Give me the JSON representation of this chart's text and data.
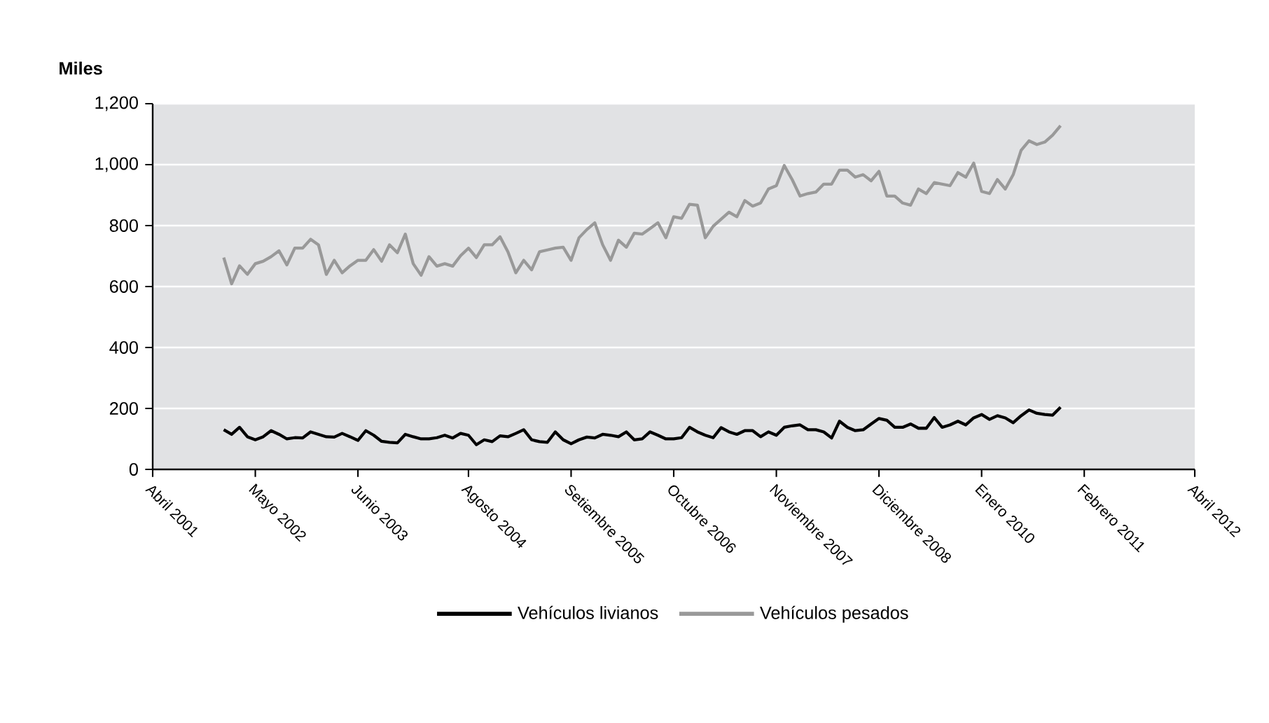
{
  "chart_data": {
    "type": "line",
    "ylabel": "Miles",
    "x": [
      "2002-01",
      "2002-02",
      "2002-03",
      "2002-04",
      "2002-05",
      "2002-06",
      "2002-07",
      "2002-08",
      "2002-09",
      "2002-10",
      "2002-11",
      "2002-12",
      "2003-01",
      "2003-02",
      "2003-03",
      "2003-04",
      "2003-05",
      "2003-06",
      "2003-07",
      "2003-08",
      "2003-09",
      "2003-10",
      "2003-11",
      "2003-12",
      "2004-01",
      "2004-02",
      "2004-03",
      "2004-04",
      "2004-05",
      "2004-06",
      "2004-07",
      "2004-08",
      "2004-09",
      "2004-10",
      "2004-11",
      "2004-12",
      "2005-01",
      "2005-02",
      "2005-03",
      "2005-04",
      "2005-05",
      "2005-06",
      "2005-07",
      "2005-08",
      "2005-09",
      "2005-10",
      "2005-11",
      "2005-12",
      "2006-01",
      "2006-02",
      "2006-03",
      "2006-04",
      "2006-05",
      "2006-06",
      "2006-07",
      "2006-08",
      "2006-09",
      "2006-10",
      "2006-11",
      "2006-12",
      "2007-01",
      "2007-02",
      "2007-03",
      "2007-04",
      "2007-05",
      "2007-06",
      "2007-07",
      "2007-08",
      "2007-09",
      "2007-10",
      "2007-11",
      "2007-12",
      "2008-01",
      "2008-02",
      "2008-03",
      "2008-04",
      "2008-05",
      "2008-06",
      "2008-07",
      "2008-08",
      "2008-09",
      "2008-10",
      "2008-11",
      "2008-12",
      "2009-01",
      "2009-02",
      "2009-03",
      "2009-04",
      "2009-05",
      "2009-06",
      "2009-07",
      "2009-08",
      "2009-09",
      "2009-10",
      "2009-11",
      "2009-12",
      "2010-01",
      "2010-02",
      "2010-03",
      "2010-04",
      "2010-05",
      "2010-06",
      "2010-07",
      "2010-08",
      "2010-09",
      "2010-10",
      "2010-11"
    ],
    "series": [
      {
        "name": "Vehículos livianos",
        "color": "#000000",
        "values": [
          130,
          115,
          138,
          107,
          97,
          107,
          127,
          115,
          100,
          104,
          103,
          123,
          115,
          107,
          106,
          118,
          107,
          95,
          127,
          112,
          92,
          89,
          87,
          115,
          107,
          100,
          100,
          104,
          112,
          103,
          118,
          112,
          81,
          97,
          91,
          110,
          107,
          118,
          130,
          97,
          91,
          89,
          123,
          97,
          84,
          97,
          106,
          103,
          115,
          112,
          107,
          123,
          97,
          100,
          123,
          112,
          100,
          100,
          104,
          138,
          123,
          112,
          104,
          137,
          123,
          115,
          127,
          127,
          107,
          123,
          112,
          138,
          143,
          146,
          130,
          130,
          123,
          103,
          158,
          138,
          127,
          130,
          149,
          167,
          161,
          138,
          138,
          149,
          135,
          135,
          170,
          138,
          146,
          158,
          146,
          169,
          180,
          164,
          176,
          169,
          153,
          176,
          195,
          184,
          180,
          178,
          204
        ]
      },
      {
        "name": "Vehículos pesados",
        "color": "#999999",
        "values": [
          695,
          609,
          668,
          640,
          675,
          683,
          698,
          717,
          671,
          726,
          726,
          755,
          737,
          640,
          686,
          645,
          668,
          686,
          686,
          721,
          683,
          737,
          711,
          772,
          675,
          637,
          698,
          667,
          675,
          667,
          701,
          726,
          695,
          737,
          737,
          763,
          714,
          645,
          686,
          655,
          714,
          720,
          726,
          729,
          686,
          760,
          787,
          809,
          737,
          686,
          752,
          729,
          775,
          772,
          790,
          809,
          760,
          829,
          824,
          870,
          867,
          760,
          798,
          821,
          844,
          829,
          882,
          864,
          874,
          920,
          931,
          997,
          951,
          897,
          905,
          910,
          936,
          936,
          982,
          982,
          959,
          967,
          947,
          978,
          897,
          897,
          874,
          867,
          920,
          905,
          941,
          936,
          931,
          974,
          959,
          1005,
          912,
          905,
          951,
          920,
          967,
          1047,
          1078,
          1066,
          1074,
          1097,
          1128
        ]
      }
    ],
    "xlim": [
      "2001-04",
      "2012-04"
    ],
    "xticks": [
      {
        "value": "2001-04",
        "label": "Abril 2001"
      },
      {
        "value": "2002-05",
        "label": "Mayo 2002"
      },
      {
        "value": "2003-06",
        "label": "Junio 2003"
      },
      {
        "value": "2004-08",
        "label": "Agosto 2004"
      },
      {
        "value": "2005-09",
        "label": "Setiembre 2005"
      },
      {
        "value": "2006-10",
        "label": "Octubre 2006"
      },
      {
        "value": "2007-11",
        "label": "Noviembre 2007"
      },
      {
        "value": "2008-12",
        "label": "Diciembre 2008"
      },
      {
        "value": "2010-01",
        "label": "Enero 2010"
      },
      {
        "value": "2011-02",
        "label": "Febrero 2011"
      },
      {
        "value": "2012-04",
        "label": "Abril 2012"
      }
    ],
    "ylim": [
      0,
      1200
    ],
    "yticks": [
      0,
      200,
      400,
      600,
      800,
      {
        "value": 1000,
        "label": "1,000"
      },
      {
        "value": 1200,
        "label": "1,200"
      }
    ],
    "grid": "y",
    "legend": "bottom",
    "marker": "none",
    "line_style": "solid"
  }
}
